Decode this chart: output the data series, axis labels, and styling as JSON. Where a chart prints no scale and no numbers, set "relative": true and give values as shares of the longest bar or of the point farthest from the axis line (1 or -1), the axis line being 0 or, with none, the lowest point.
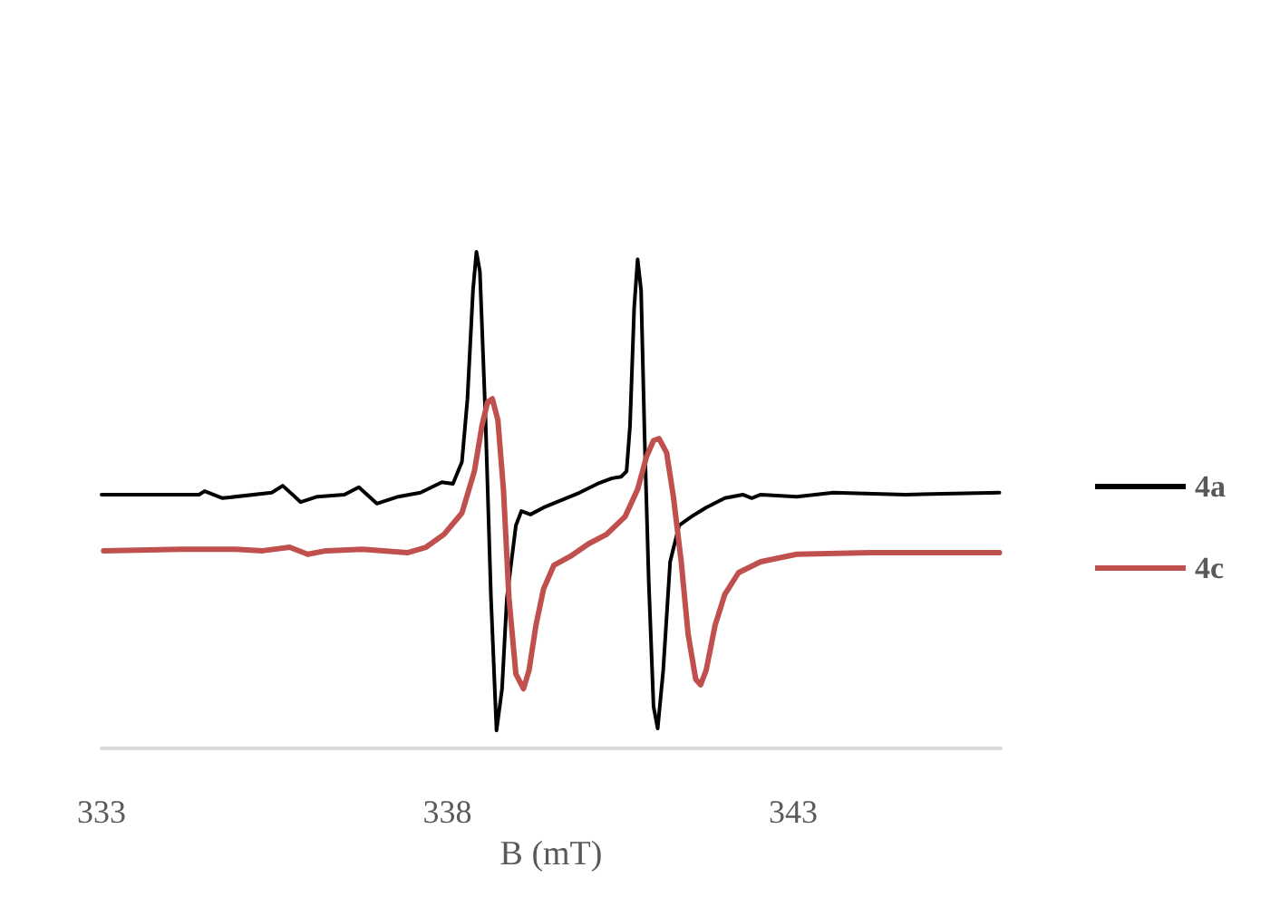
{
  "chart_data": {
    "type": "line",
    "xlabel": "B (mT)",
    "relative": true,
    "xlim": [
      333,
      346
    ],
    "xticks": [
      333,
      338,
      343
    ],
    "legend": "right",
    "marker": "none",
    "line_style": "solid",
    "series": [
      {
        "name": "4a",
        "color": "#000000",
        "x": [
          333.0,
          334.41,
          334.49,
          334.75,
          335.46,
          335.62,
          335.88,
          336.12,
          336.51,
          336.72,
          336.98,
          337.29,
          337.61,
          337.92,
          338.08,
          338.21,
          338.29,
          338.37,
          338.42,
          338.47,
          338.55,
          338.63,
          338.71,
          338.79,
          338.86,
          338.99,
          339.07,
          339.2,
          339.39,
          339.91,
          340.17,
          340.38,
          340.51,
          340.59,
          340.64,
          340.7,
          340.75,
          340.8,
          340.85,
          340.91,
          340.98,
          341.04,
          341.12,
          341.22,
          341.35,
          341.53,
          341.74,
          342.01,
          342.27,
          342.4,
          342.53,
          343.05,
          343.58,
          344.62,
          345.98
        ],
        "values": [
          0.511,
          0.511,
          0.518,
          0.504,
          0.515,
          0.529,
          0.496,
          0.507,
          0.511,
          0.526,
          0.493,
          0.507,
          0.515,
          0.536,
          0.533,
          0.577,
          0.704,
          0.923,
          1,
          0.96,
          0.668,
          0.303,
          0.036,
          0.12,
          0.303,
          0.449,
          0.478,
          0.471,
          0.485,
          0.515,
          0.533,
          0.544,
          0.547,
          0.558,
          0.65,
          0.887,
          0.985,
          0.923,
          0.631,
          0.339,
          0.084,
          0.04,
          0.157,
          0.376,
          0.449,
          0.467,
          0.485,
          0.504,
          0.511,
          0.504,
          0.511,
          0.507,
          0.515,
          0.511,
          0.515
        ]
      },
      {
        "name": "4c",
        "color": "#c0504d",
        "x": [
          333.03,
          334.15,
          334.94,
          335.33,
          335.72,
          335.98,
          336.25,
          336.77,
          337.42,
          337.69,
          337.95,
          338.21,
          338.39,
          338.5,
          338.58,
          338.65,
          338.73,
          338.81,
          338.89,
          338.99,
          339.1,
          339.18,
          339.28,
          339.39,
          339.54,
          339.78,
          340.04,
          340.3,
          340.57,
          340.75,
          340.88,
          340.98,
          341.06,
          341.17,
          341.27,
          341.38,
          341.48,
          341.59,
          341.66,
          341.74,
          341.87,
          342.01,
          342.21,
          342.53,
          343.05,
          344.1,
          345.98
        ],
        "values": [
          0.398,
          0.401,
          0.401,
          0.398,
          0.405,
          0.391,
          0.398,
          0.401,
          0.394,
          0.405,
          0.431,
          0.474,
          0.558,
          0.65,
          0.697,
          0.704,
          0.661,
          0.522,
          0.303,
          0.15,
          0.12,
          0.157,
          0.248,
          0.321,
          0.369,
          0.387,
          0.412,
          0.431,
          0.467,
          0.522,
          0.588,
          0.62,
          0.624,
          0.595,
          0.504,
          0.376,
          0.23,
          0.139,
          0.128,
          0.157,
          0.248,
          0.31,
          0.354,
          0.376,
          0.391,
          0.394,
          0.394
        ]
      }
    ]
  }
}
